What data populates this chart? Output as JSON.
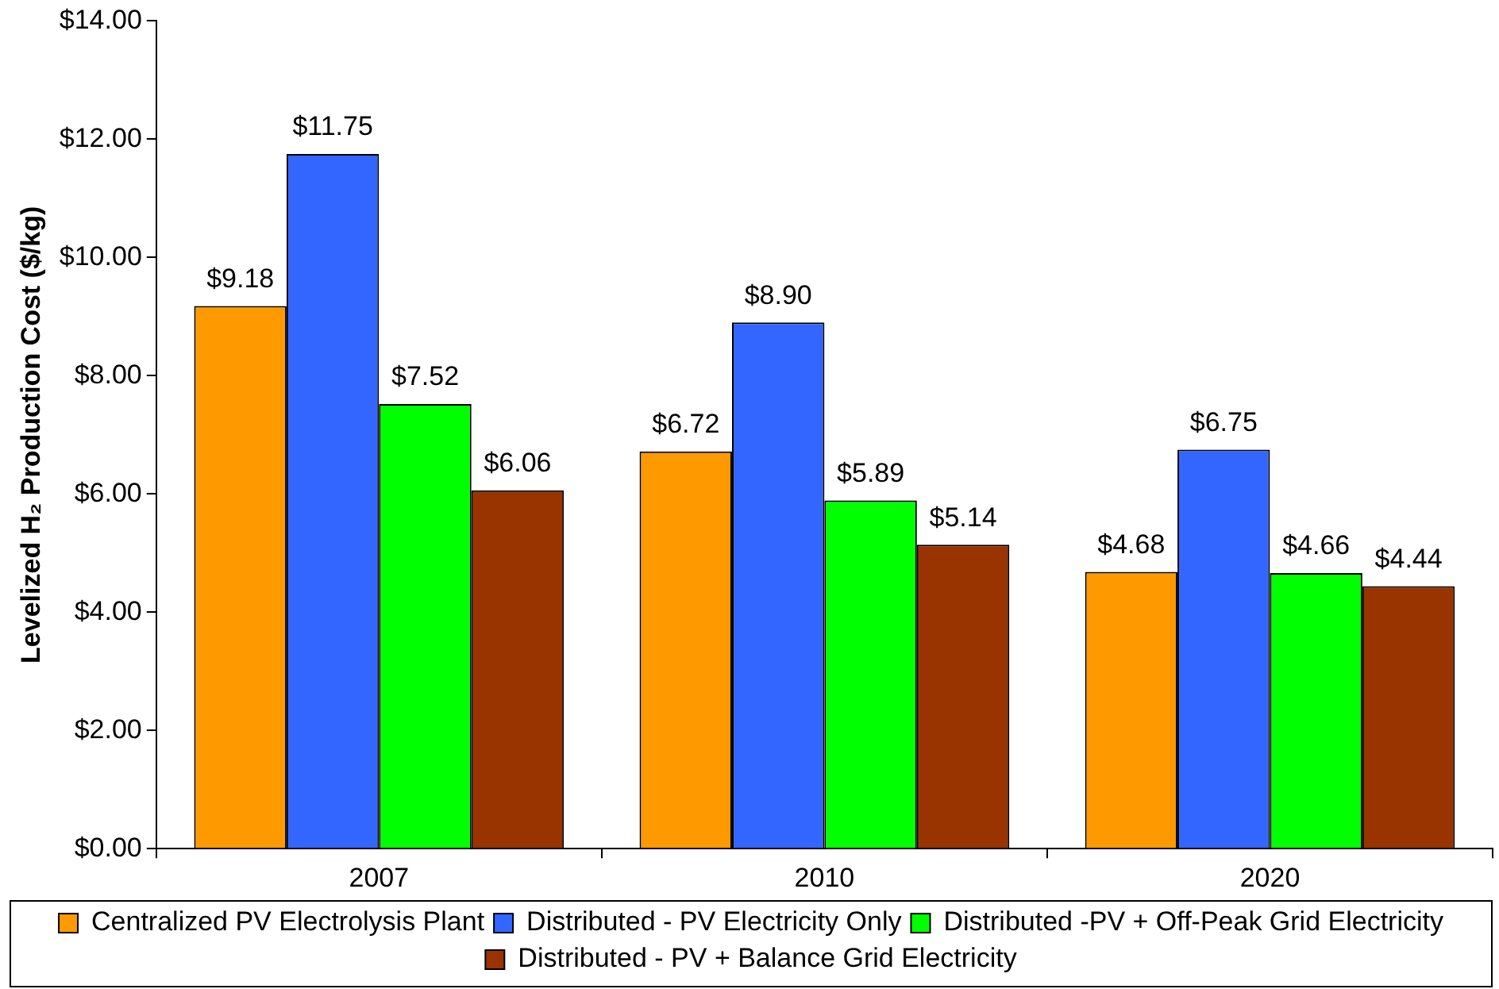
{
  "chart_data": {
    "type": "bar",
    "ylabel": "Levelized H₂ Production Cost ($/kg)",
    "categories": [
      "2007",
      "2010",
      "2020"
    ],
    "series": [
      {
        "name": "Centralized PV Electrolysis Plant",
        "color": "#ff9900",
        "values": [
          9.18,
          6.72,
          4.68
        ],
        "value_labels": [
          "$9.18",
          "$6.72",
          "$4.68"
        ]
      },
      {
        "name": "Distributed - PV Electricity Only",
        "color": "#3366ff",
        "values": [
          11.75,
          8.9,
          6.75
        ],
        "value_labels": [
          "$11.75",
          "$8.90",
          "$6.75"
        ]
      },
      {
        "name": "Distributed -PV + Off-Peak Grid Electricity",
        "color": "#00ff00",
        "values": [
          7.52,
          5.89,
          4.66
        ],
        "value_labels": [
          "$7.52",
          "$5.89",
          "$4.66"
        ]
      },
      {
        "name": "Distributed - PV + Balance Grid Electricity",
        "color": "#993300",
        "values": [
          6.06,
          5.14,
          4.44
        ],
        "value_labels": [
          "$6.06",
          "$5.14",
          "$4.44"
        ]
      }
    ],
    "ylim": [
      0,
      14
    ],
    "yticks": [
      {
        "value": 0,
        "label": "$0.00"
      },
      {
        "value": 2,
        "label": "$2.00"
      },
      {
        "value": 4,
        "label": "$4.00"
      },
      {
        "value": 6,
        "label": "$6.00"
      },
      {
        "value": 8,
        "label": "$8.00"
      },
      {
        "value": 10,
        "label": "$10.00"
      },
      {
        "value": 12,
        "label": "$12.00"
      },
      {
        "value": 14,
        "label": "$14.00"
      }
    ],
    "grid": false,
    "legend": "bottom"
  }
}
